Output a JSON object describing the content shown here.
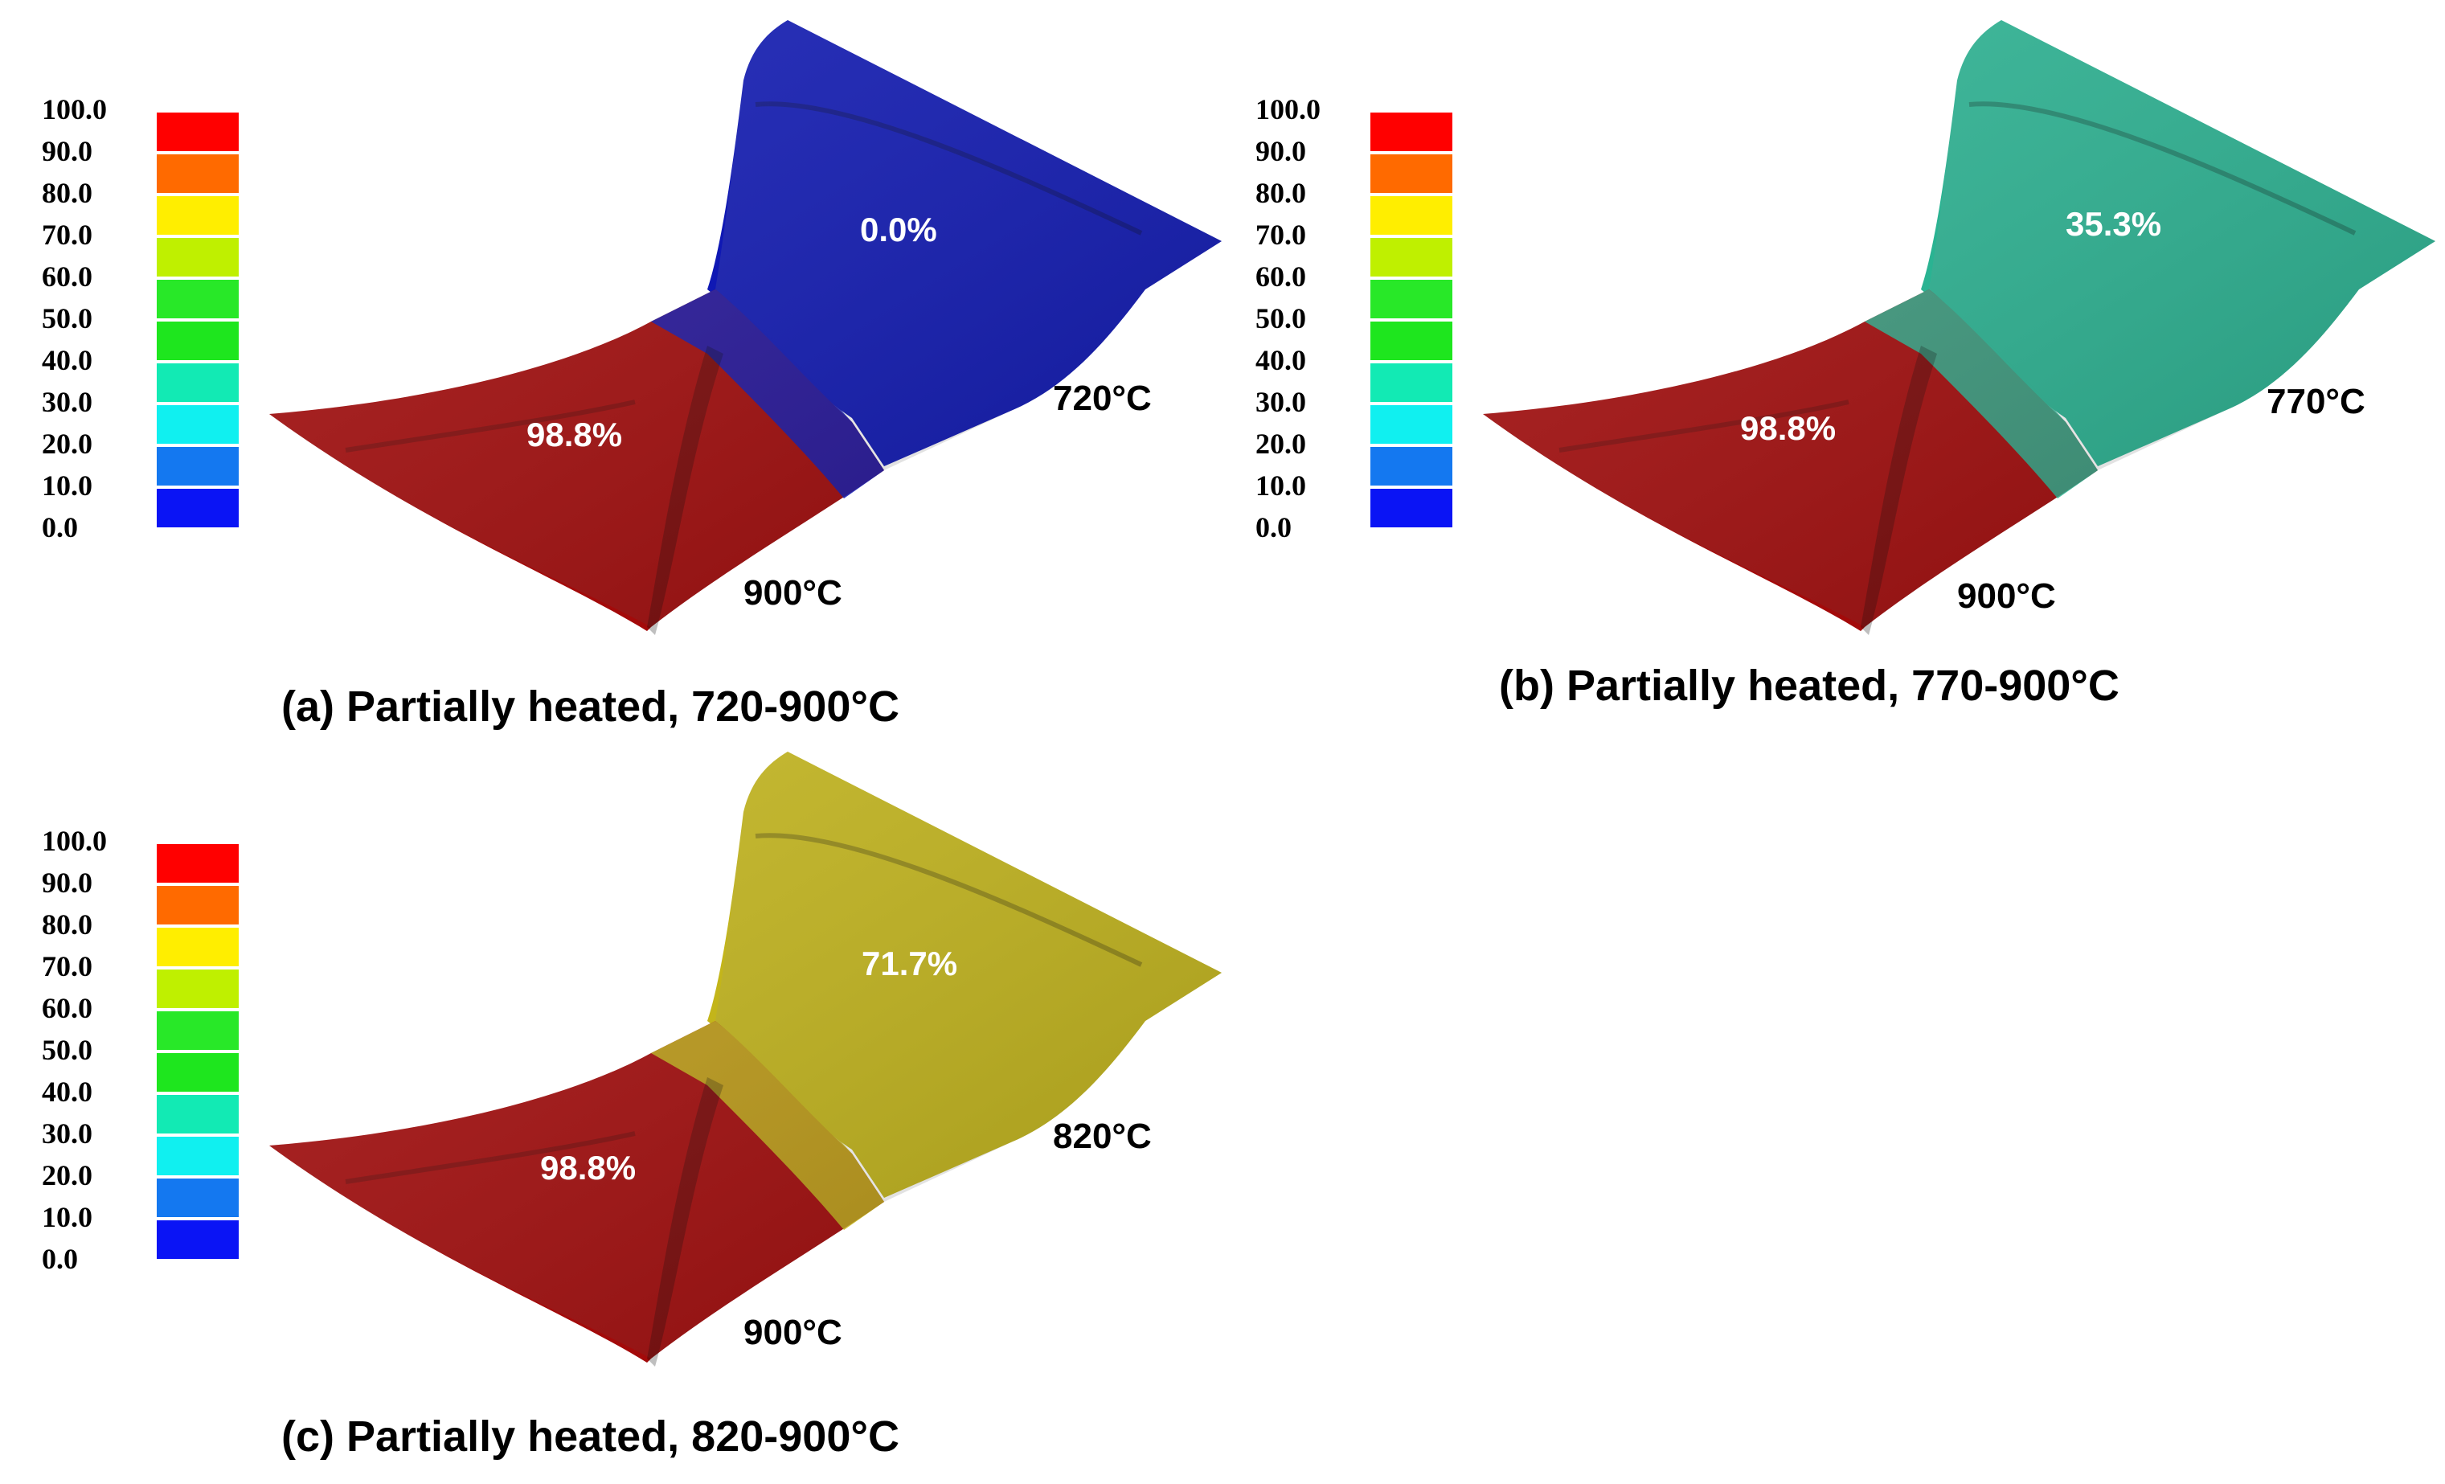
{
  "legend": {
    "labels": [
      "100.0",
      "90.0",
      "80.0",
      "70.0",
      "60.0",
      "50.0",
      "40.0",
      "30.0",
      "20.0",
      "10.0",
      "0.0"
    ],
    "colors": [
      "#ff0000",
      "#ff6a00",
      "#ffee00",
      "#bff000",
      "#28e828",
      "#1ee61e",
      "#12eab4",
      "#10f0f0",
      "#1478f0",
      "#0a14f5"
    ]
  },
  "panels": [
    {
      "caption": "(a) Partially heated, 720-900°C",
      "hot_value": "98.8%",
      "cool_value": "0.0%",
      "hot_temp": "900°C",
      "cool_temp": "720°C",
      "hot_color": "#a30a0a",
      "cool_color": "#0f18b4"
    },
    {
      "caption": "(b) Partially heated, 770-900°C",
      "hot_value": "98.8%",
      "cool_value": "35.3%",
      "hot_temp": "900°C",
      "cool_temp": "770°C",
      "hot_color": "#a30a0a",
      "cool_color": "#2ab392"
    },
    {
      "caption": "(c) Partially heated, 820-900°C",
      "hot_value": "98.8%",
      "cool_value": "71.7%",
      "hot_temp": "900°C",
      "cool_temp": "820°C",
      "hot_color": "#a30a0a",
      "cool_color": "#c3b51a"
    }
  ]
}
